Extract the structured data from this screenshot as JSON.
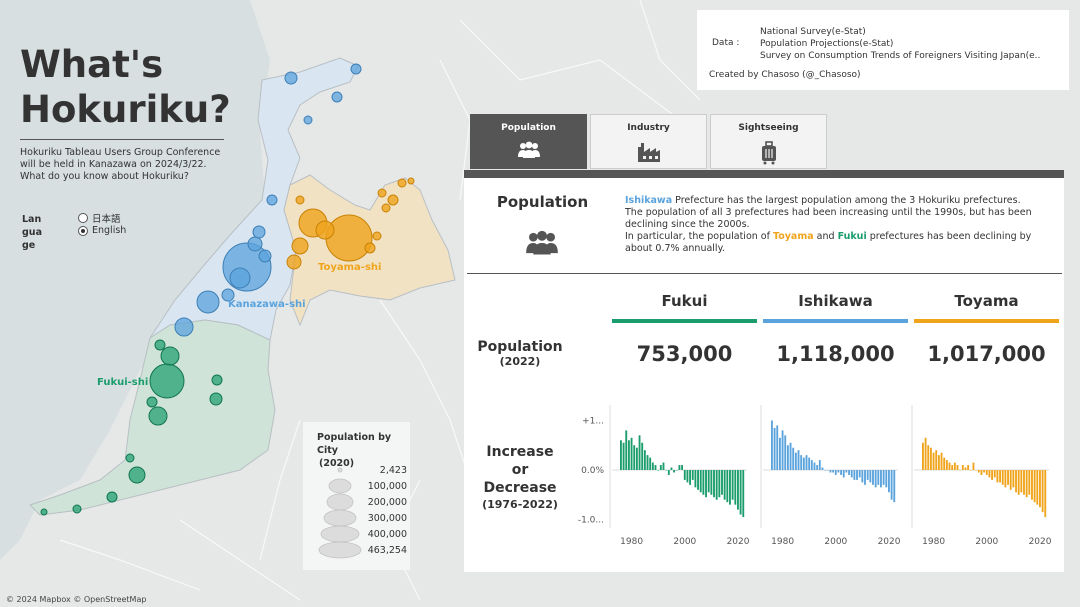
{
  "title": {
    "line1": "What's",
    "line2": "Hokuriku?"
  },
  "subtitle": [
    "Hokuriku Tableau Users Group Conference",
    "will be held in Kanazawa on 2024/3/22.",
    "What do you know about Hokuriku?"
  ],
  "language": {
    "label": "Language",
    "options": [
      "日本語",
      "English"
    ],
    "selected": "English"
  },
  "map_labels": {
    "kanazawa": "Kanazawa-shi",
    "toyama": "Toyama-shi",
    "fukui": "Fukui-shi"
  },
  "legend": {
    "title_line1": "Population by City",
    "title_line2": "(2020)",
    "values": [
      "2,423",
      "100,000",
      "200,000",
      "300,000",
      "400,000",
      "463,254"
    ]
  },
  "info": {
    "data_label": "Data :",
    "sources": [
      "National Survey(e-Stat)",
      "Population Projections(e-Stat)",
      "Survey on Consumption Trends of Foreigners Visiting Japan(e.."
    ],
    "credit": "Created by Chasoso (@_Chasoso)"
  },
  "tabs": [
    {
      "label": "Population",
      "icon": "people-icon",
      "active": true
    },
    {
      "label": "Industry",
      "icon": "factory-icon",
      "active": false
    },
    {
      "label": "Sightseeing",
      "icon": "luggage-icon",
      "active": false
    }
  ],
  "section_title": "Population",
  "description": {
    "p1_pref": "Ishikawa",
    "p1_rest": " Prefecture has the largest population among the 3 Hokuriku prefectures.",
    "p2": "The population of all 3 prefectures had been increasing until the 1990s, but has been declining since the 2000s.",
    "p3_a": "In particular, the population of ",
    "p3_toyama": "Toyama",
    "p3_b": " and ",
    "p3_fukui": "Fukui",
    "p3_c": " prefectures has been declining by about 0.7% annually."
  },
  "row_labels": {
    "population": "Population",
    "population_year": "(2022)",
    "change_line1": "Increase",
    "change_line2": "or",
    "change_line3": "Decrease",
    "change_years": "(1976-2022)"
  },
  "prefectures": [
    {
      "name": "Fukui",
      "population": "753,000",
      "color": "#1a9c6c"
    },
    {
      "name": "Ishikawa",
      "population": "1,118,000",
      "color": "#5ba3dd"
    },
    {
      "name": "Toyama",
      "population": "1,017,000",
      "color": "#f0a41c"
    }
  ],
  "footer": "© 2024 Mapbox © OpenStreetMap",
  "chart_data": {
    "type": "bar",
    "title": "",
    "xlabel": "",
    "ylabel": "",
    "x_ticks": [
      "1980",
      "2000",
      "2020"
    ],
    "y_ticks": [
      "+1...",
      "0.0%",
      "-1.0..."
    ],
    "ylim": [
      -1.05,
      1.05
    ],
    "x": [
      1976,
      1977,
      1978,
      1979,
      1980,
      1981,
      1982,
      1983,
      1984,
      1985,
      1986,
      1987,
      1988,
      1989,
      1990,
      1991,
      1992,
      1993,
      1994,
      1995,
      1996,
      1997,
      1998,
      1999,
      2000,
      2001,
      2002,
      2003,
      2004,
      2005,
      2006,
      2007,
      2008,
      2009,
      2010,
      2011,
      2012,
      2013,
      2014,
      2015,
      2016,
      2017,
      2018,
      2019,
      2020,
      2021,
      2022
    ],
    "series": [
      {
        "name": "Fukui",
        "values": [
          0.6,
          0.55,
          0.8,
          0.6,
          0.65,
          0.5,
          0.45,
          0.7,
          0.55,
          0.4,
          0.3,
          0.25,
          0.15,
          0.1,
          0.0,
          0.1,
          0.15,
          0.0,
          -0.1,
          0.05,
          -0.05,
          0.0,
          0.1,
          0.1,
          -0.2,
          -0.25,
          -0.3,
          -0.2,
          -0.35,
          -0.4,
          -0.45,
          -0.5,
          -0.55,
          -0.45,
          -0.5,
          -0.55,
          -0.6,
          -0.55,
          -0.5,
          -0.6,
          -0.65,
          -0.7,
          -0.6,
          -0.7,
          -0.8,
          -0.9,
          -0.95
        ]
      },
      {
        "name": "Ishikawa",
        "values": [
          1.0,
          0.85,
          0.9,
          0.65,
          0.8,
          0.7,
          0.5,
          0.55,
          0.45,
          0.35,
          0.4,
          0.3,
          0.25,
          0.3,
          0.25,
          0.2,
          0.15,
          0.1,
          0.2,
          0.05,
          0.0,
          0.0,
          -0.05,
          -0.05,
          -0.1,
          -0.05,
          -0.1,
          -0.15,
          -0.05,
          -0.1,
          -0.15,
          -0.2,
          -0.2,
          -0.15,
          -0.25,
          -0.3,
          -0.2,
          -0.25,
          -0.3,
          -0.35,
          -0.3,
          -0.35,
          -0.3,
          -0.35,
          -0.45,
          -0.6,
          -0.65
        ]
      },
      {
        "name": "Toyama",
        "values": [
          0.55,
          0.65,
          0.5,
          0.45,
          0.35,
          0.4,
          0.3,
          0.35,
          0.25,
          0.2,
          0.15,
          0.1,
          0.15,
          0.1,
          0.0,
          0.1,
          0.05,
          0.1,
          0.0,
          0.15,
          0.0,
          -0.05,
          -0.1,
          -0.05,
          -0.1,
          -0.15,
          -0.2,
          -0.15,
          -0.25,
          -0.25,
          -0.3,
          -0.35,
          -0.3,
          -0.4,
          -0.35,
          -0.45,
          -0.5,
          -0.45,
          -0.5,
          -0.55,
          -0.5,
          -0.6,
          -0.65,
          -0.7,
          -0.75,
          -0.85,
          -0.95
        ]
      }
    ]
  }
}
